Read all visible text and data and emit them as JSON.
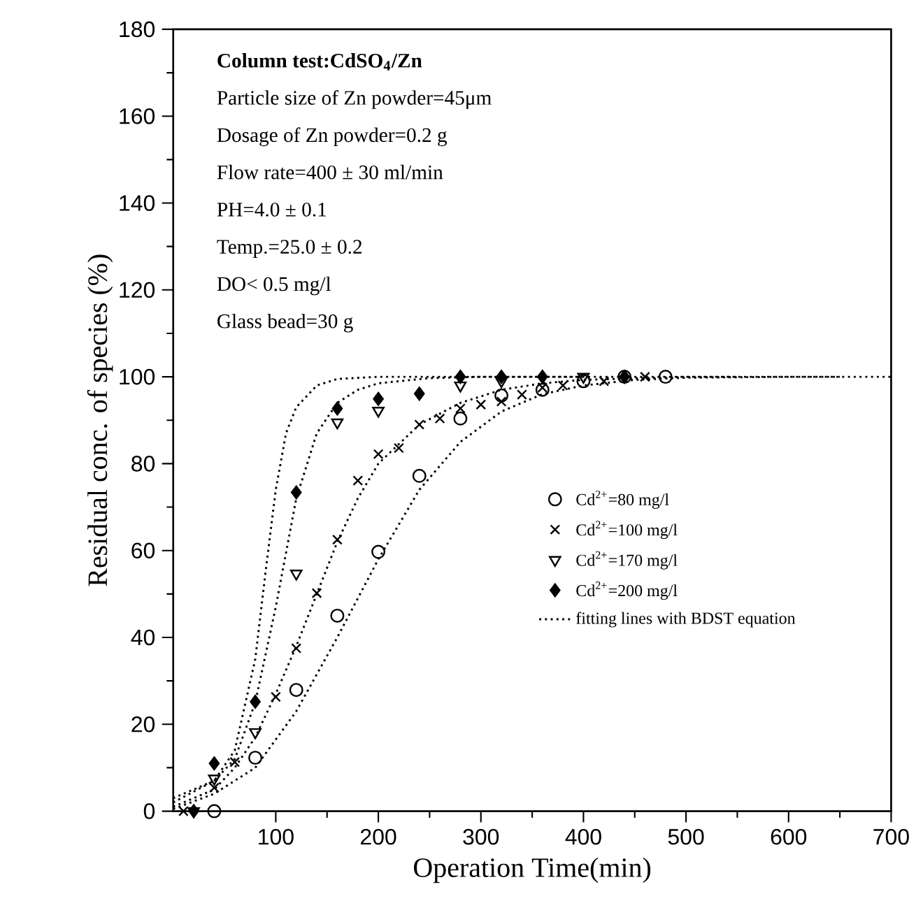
{
  "chart_data": {
    "type": "scatter",
    "xlabel": "Operation Time(min)",
    "ylabel": "Residual conc. of species (%)",
    "xlim": [
      0,
      700
    ],
    "xticks": [
      100,
      200,
      300,
      400,
      500,
      600,
      700
    ],
    "ylim": [
      0,
      180
    ],
    "yticks": [
      0,
      20,
      40,
      60,
      80,
      100,
      120,
      140,
      160,
      180
    ],
    "legend": "right",
    "grid": false,
    "annotations": [
      "Column test:CdSO$_{4}$/Zn",
      "Particle size of Zn powder=45μm",
      "Dosage of Zn powder=0.2 g",
      "Flow rate=400 ± 30 ml/min",
      "PH=4.0 ± 0.1",
      "Temp.=25.0 ± 0.2",
      "DO< 0.5 mg/l",
      "Glass bead=30 g"
    ],
    "series": [
      {
        "name": "Cd$^{2+}$=80  mg/l",
        "color": "#000000",
        "marker": "circle",
        "x": [
          40,
          80,
          120,
          160,
          200,
          240,
          280,
          320,
          360,
          400,
          440,
          480
        ],
        "values": [
          0,
          12.3,
          27.9,
          45,
          59.7,
          77.2,
          90.4,
          95.7,
          97,
          99,
          100,
          100
        ]
      },
      {
        "name": "Cd$^{2+}$=100 mg/l",
        "color": "#000000",
        "marker": "cross",
        "x": [
          10,
          40,
          60,
          100,
          120,
          140,
          160,
          180,
          200,
          220,
          240,
          260,
          280,
          300,
          320,
          340,
          360,
          380,
          420,
          460
        ],
        "values": [
          0,
          5.4,
          11.3,
          26.3,
          37.5,
          50.2,
          62.5,
          76.1,
          82.2,
          83.6,
          89,
          90.4,
          92.7,
          93.6,
          94.3,
          95.9,
          97.5,
          98,
          99,
          100
        ]
      },
      {
        "name": "Cd$^{2+}$=170 mg/l",
        "color": "#000000",
        "marker": "triangle",
        "x": [
          20,
          40,
          80,
          120,
          160,
          200,
          280,
          320,
          360,
          400
        ],
        "values": [
          0,
          7.5,
          18.2,
          54.7,
          89.5,
          92.2,
          98,
          99,
          null,
          100
        ]
      },
      {
        "name": "Cd$^{2+}$=200 mg/l",
        "color": "#000000",
        "marker": "diamond",
        "x": [
          20,
          40,
          80,
          120,
          160,
          200,
          240,
          280,
          320,
          360,
          400,
          440
        ],
        "values": [
          0,
          11,
          25.2,
          73.4,
          92.7,
          94.9,
          96.1,
          100,
          100,
          100,
          null,
          100
        ]
      },
      {
        "name": "fitting lines with BDST equation",
        "type": "line",
        "color": "#000000",
        "marker": "none",
        "line_style": "dotted",
        "x": [
          0,
          40,
          60,
          80,
          90,
          100,
          110,
          120,
          140,
          160,
          200,
          300,
          700
        ],
        "values": [
          3,
          7,
          14,
          35,
          55,
          74,
          87,
          93,
          98,
          99.5,
          100,
          100,
          100
        ]
      },
      {
        "type": "line",
        "color": "#000000",
        "marker": "none",
        "line_style": "dotted",
        "x": [
          0,
          40,
          60,
          80,
          100,
          120,
          140,
          160,
          180,
          200,
          250,
          300,
          400
        ],
        "values": [
          2,
          7,
          12,
          25,
          47,
          72,
          87,
          94,
          97,
          98.5,
          99.7,
          100,
          100
        ]
      },
      {
        "type": "line",
        "color": "#000000",
        "marker": "none",
        "line_style": "dotted",
        "x": [
          0,
          40,
          60,
          80,
          100,
          120,
          140,
          160,
          180,
          200,
          240,
          280,
          320,
          360,
          400,
          500,
          550
        ],
        "values": [
          1,
          5,
          10,
          17,
          27,
          38,
          50,
          62,
          72,
          80,
          89,
          94,
          97,
          98.5,
          99.3,
          100,
          100
        ]
      },
      {
        "type": "line",
        "color": "#000000",
        "marker": "none",
        "line_style": "dotted",
        "x": [
          0,
          40,
          80,
          120,
          160,
          200,
          240,
          280,
          320,
          360,
          400,
          450,
          500,
          600,
          650
        ],
        "values": [
          0.5,
          4,
          10,
          23,
          40,
          58,
          74,
          85,
          92,
          96,
          98,
          99.3,
          99.8,
          100,
          100
        ]
      }
    ]
  }
}
